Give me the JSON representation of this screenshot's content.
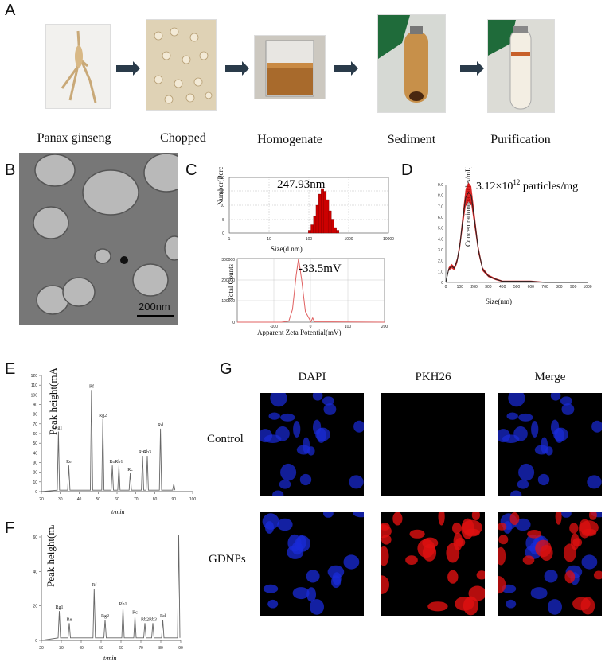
{
  "panels": {
    "a": "A",
    "b": "B",
    "c": "C",
    "d": "D",
    "e": "E",
    "f": "F",
    "g": "G"
  },
  "workflow": {
    "steps": [
      "Panax ginseng",
      "Chopped",
      "Homogenate",
      "Sediment",
      "Purification"
    ]
  },
  "sem": {
    "scale_bar": "200nm"
  },
  "size_chart": {
    "annotation": "247.93nm",
    "ylabel": "Number(Percent)",
    "xlabel": "Size(d.nm)",
    "yticks": [
      "0",
      "5",
      "10",
      "15",
      "20"
    ],
    "xticks": [
      "1",
      "10",
      "100",
      "1000",
      "10000"
    ]
  },
  "zeta_chart": {
    "annotation": "-33.5mV",
    "ylabel": "Total Counts",
    "xlabel": "Apparent Zeta Potential(mV)",
    "yticks": [
      "0",
      "100000",
      "200000",
      "300000"
    ],
    "xticks": [
      "-100",
      "0",
      "100",
      "200"
    ]
  },
  "nta_chart": {
    "annotation_prefix": "3.12×10",
    "annotation_exp": "12",
    "annotation_suffix": " particles/mg",
    "ylabel": "Concentration(particles/mL)",
    "xlabel": "Size(nm)",
    "yticks": [
      "0",
      "1.0",
      "2.0",
      "3.0",
      "4.0",
      "5.0",
      "6.0",
      "7.0",
      "8.0",
      "9.0"
    ],
    "xticks": [
      "0",
      "100",
      "200",
      "300",
      "400",
      "500",
      "600",
      "700",
      "800",
      "900",
      "1000"
    ]
  },
  "hplc_e": {
    "ylabel": "Peak height(mAU)",
    "xlabel": "t/min",
    "yticks": [
      "0",
      "10",
      "20",
      "30",
      "40",
      "50",
      "60",
      "70",
      "80",
      "90",
      "100",
      "110",
      "120"
    ],
    "xticks": [
      "20",
      "30",
      "40",
      "50",
      "60",
      "70",
      "80",
      "90",
      "100"
    ],
    "peaks": [
      "Rg1",
      "Re",
      "Rf",
      "Rg2",
      "Ro",
      "Rb1",
      "Rc",
      "Rb2",
      "Rb3",
      "Rd"
    ]
  },
  "hplc_f": {
    "ylabel": "Peak height(mAU)",
    "xlabel": "t/min",
    "yticks": [
      "0",
      "20",
      "40",
      "60"
    ],
    "xticks": [
      "20",
      "30",
      "40",
      "50",
      "60",
      "70",
      "80",
      "90"
    ],
    "peaks": [
      "Rg1",
      "Re",
      "Rf",
      "Rg2",
      "Rb1",
      "Rc",
      "Rb2",
      "Rb3",
      "Rd"
    ]
  },
  "confocal": {
    "columns": [
      "DAPI",
      "PKH26",
      "Merge"
    ],
    "rows": [
      "Control",
      "GDNPs"
    ]
  },
  "colors": {
    "dls_bar": "#cc0000",
    "zeta_line": "#e06060",
    "nta_band": "#d40000",
    "nta_line": "#222222",
    "dapi": "#1a2bd8",
    "pkh": "#e01010"
  },
  "chart_data": [
    {
      "type": "bar",
      "title": "247.93nm",
      "xlabel": "Size(d.nm)",
      "ylabel": "Number(Percent)",
      "x_scale": "log",
      "x": [
        105,
        122,
        142,
        164,
        190,
        220,
        255,
        295,
        342,
        396,
        459,
        531
      ],
      "values": [
        1,
        3,
        6,
        10,
        14,
        16,
        15,
        12,
        8,
        5,
        2,
        1
      ],
      "ylim": [
        0,
        20
      ],
      "xlim": [
        1,
        10000
      ]
    },
    {
      "type": "line",
      "title": "-33.5mV",
      "xlabel": "Apparent Zeta Potential(mV)",
      "ylabel": "Total Counts",
      "x": [
        -200,
        -80,
        -60,
        -50,
        -40,
        -33.5,
        -25,
        -15,
        0,
        5,
        10,
        200
      ],
      "y": [
        0,
        0,
        5000,
        60000,
        220000,
        300000,
        200000,
        50000,
        2000,
        20000,
        2000,
        0
      ],
      "xlim": [
        -200,
        200
      ],
      "ylim": [
        0,
        300000
      ]
    },
    {
      "type": "line",
      "title": "3.12×10^12 particles/mg",
      "xlabel": "Size(nm)",
      "ylabel": "Concentration(particles/mL)",
      "x": [
        0,
        20,
        40,
        60,
        80,
        100,
        120,
        140,
        160,
        180,
        200,
        230,
        260,
        300,
        350,
        400,
        500,
        600,
        700,
        800,
        900,
        1000
      ],
      "y": [
        0,
        1.2,
        1.5,
        1.3,
        2.0,
        3.5,
        5.8,
        7.8,
        8.3,
        8.0,
        6.0,
        3.0,
        1.2,
        0.6,
        0.3,
        0.1,
        0.1,
        0.1,
        0,
        0,
        0,
        0
      ],
      "xlim": [
        0,
        1000
      ],
      "ylim": [
        0,
        9
      ]
    },
    {
      "type": "line",
      "xlabel": "t/min",
      "ylabel": "Peak height(mAU)",
      "x": [
        20,
        29,
        34.5,
        46.5,
        52.5,
        57.5,
        61,
        67,
        73.5,
        76,
        83,
        90
      ],
      "y": [
        0,
        62,
        27,
        105,
        75,
        27,
        27,
        19,
        37,
        37,
        65,
        8
      ],
      "xlim": [
        20,
        100
      ],
      "ylim": [
        0,
        120
      ]
    },
    {
      "type": "line",
      "xlabel": "t/min",
      "ylabel": "Peak height(mAU)",
      "x": [
        20,
        29,
        34,
        46.5,
        52,
        61,
        67,
        72,
        76,
        81,
        89
      ],
      "y": [
        0,
        17,
        10,
        30,
        12,
        19,
        14,
        10,
        10,
        12,
        61
      ],
      "xlim": [
        20,
        90
      ],
      "ylim": [
        0,
        60
      ]
    }
  ]
}
